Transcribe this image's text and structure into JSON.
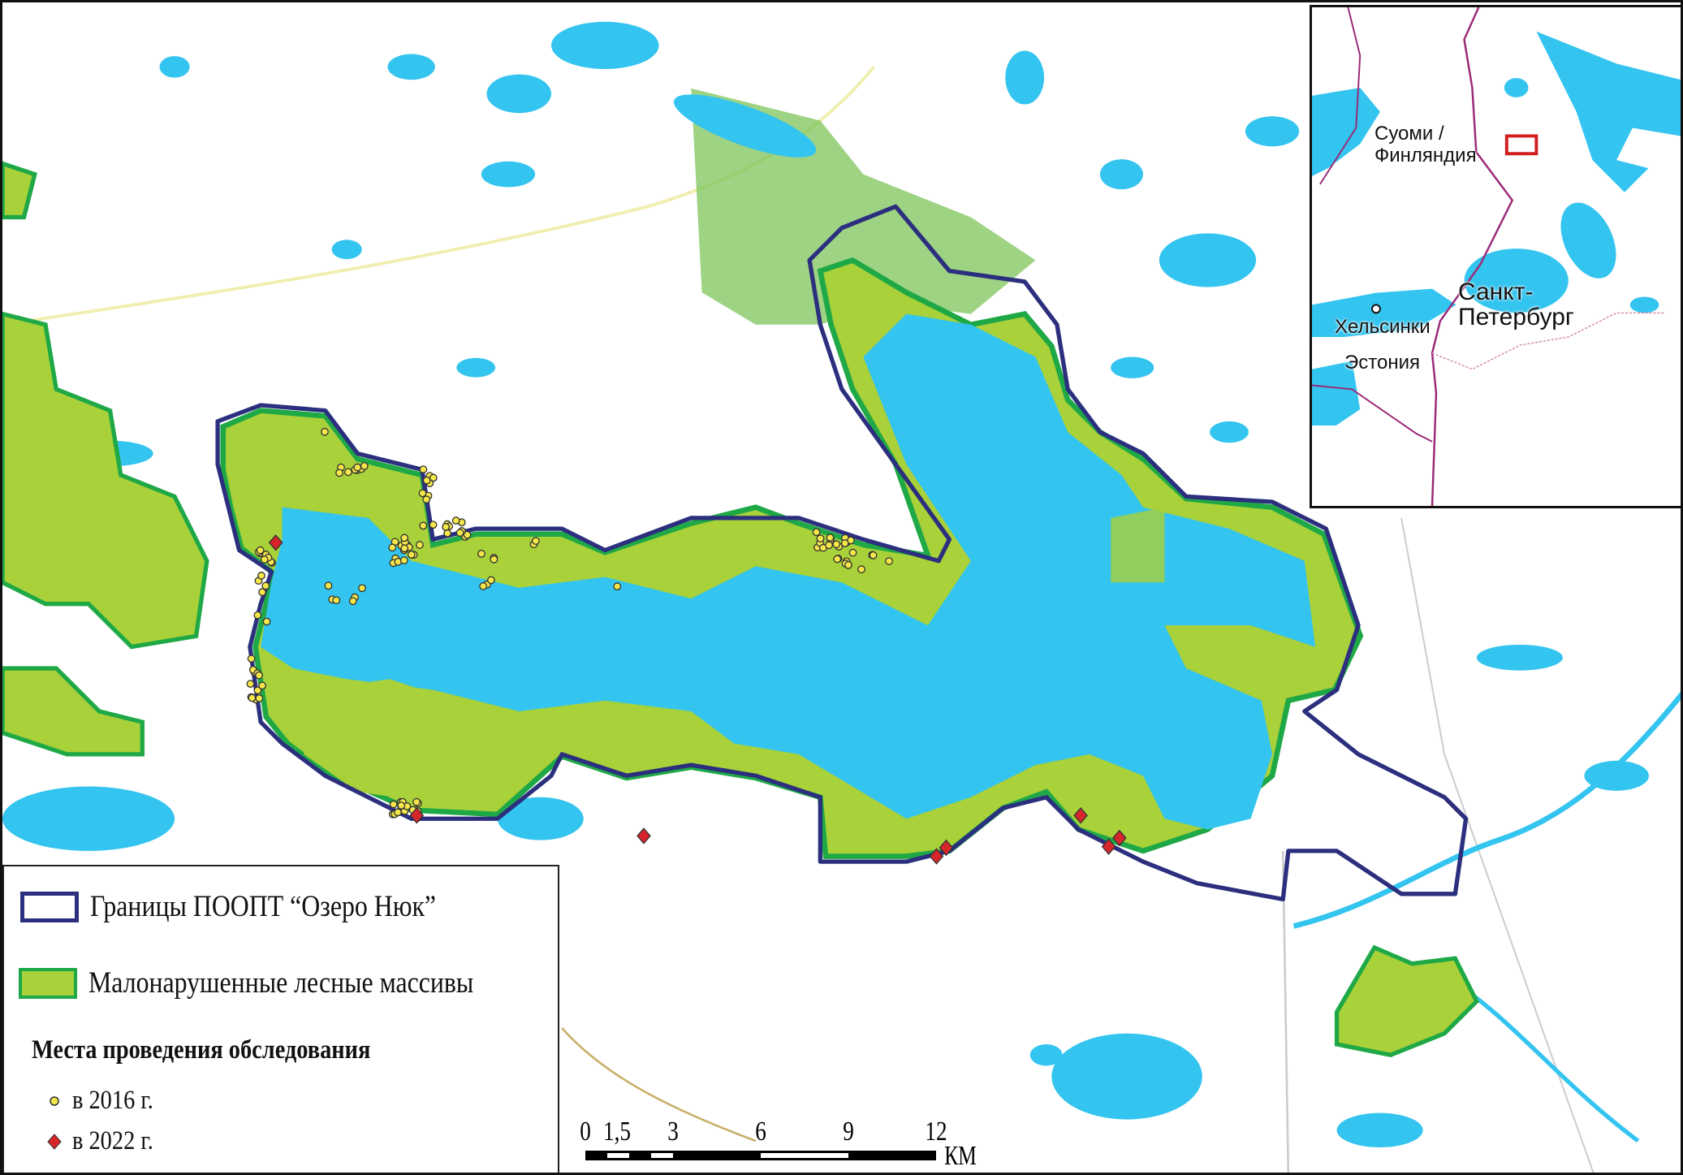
{
  "legend": {
    "boundary_label": "Границы ПООПТ “Озеро Нюк”",
    "forest_label": "Малонарушенные лесные массивы",
    "survey_title": "Места проведения обследования",
    "survey_2016": "в 2016 г.",
    "survey_2022": "в 2022 г."
  },
  "scale_bar": {
    "ticks": [
      "0",
      "1,5",
      "3",
      "6",
      "9",
      "12"
    ],
    "unit": "КМ"
  },
  "inset": {
    "finland": "Суоми / Финляндия",
    "finland_line1": "Суоми /",
    "finland_line2": "Финляндия",
    "spb_line1": "Санкт-",
    "spb_line2": "Петербург",
    "helsinki": "Хельсинки",
    "estonia": "Эстония"
  },
  "colors": {
    "water": "#33c4ef",
    "forest_fill": "#a8d13a",
    "forest_outline": "#1fa846",
    "boundary": "#2b2f7e",
    "points_2016": "#f5e74a",
    "points_2022": "#d6262c",
    "inset_frame": "#d11f1f",
    "border": "#9b2a78"
  }
}
